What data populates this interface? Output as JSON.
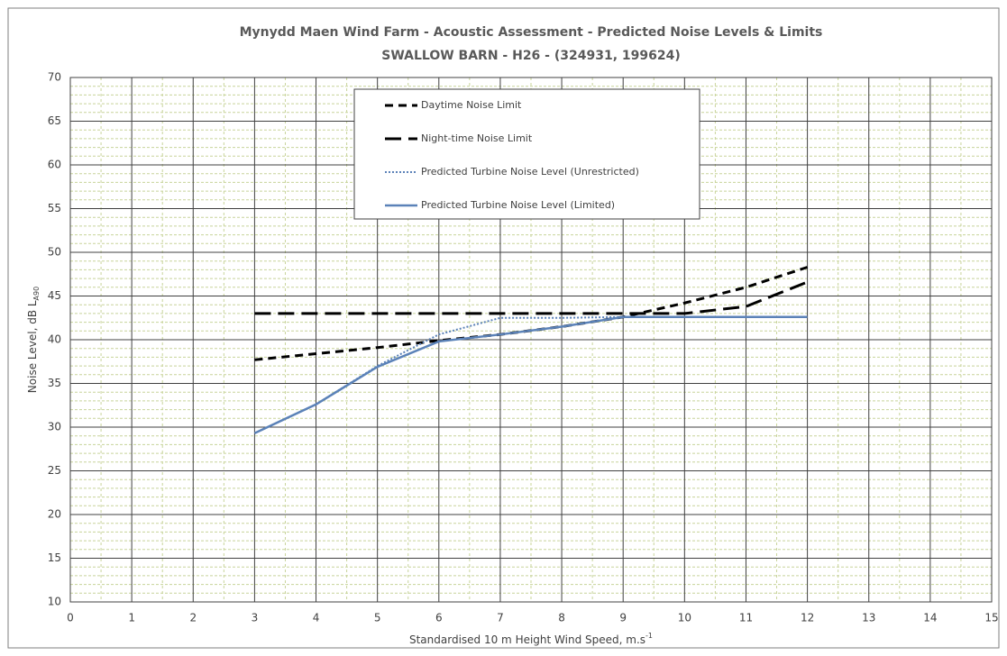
{
  "chart_data": {
    "type": "line",
    "title": "Mynydd Maen Wind Farm - Acoustic Assessment - Predicted Noise Levels & Limits",
    "subtitle": "SWALLOW BARN - H26 - (324931, 199624)",
    "xlabel": {
      "text": "Standardised 10 m Height Wind Speed, m.s",
      "sup": "-1"
    },
    "ylabel": {
      "text": "Noise Level, dB L",
      "sub": "A90"
    },
    "x": [
      3,
      4,
      5,
      6,
      7,
      8,
      9,
      10,
      11,
      12
    ],
    "series": [
      {
        "name": "Daytime Noise Limit",
        "color": "#000000",
        "dash": "dashed",
        "values": [
          37.7,
          38.4,
          39.1,
          39.9,
          40.6,
          41.5,
          42.6,
          44.2,
          46.0,
          48.3
        ]
      },
      {
        "name": "Night-time Noise Limit",
        "color": "#000000",
        "dash": "long-dashed",
        "values": [
          43,
          43,
          43,
          43,
          43,
          43,
          43,
          43,
          43.8,
          46.6
        ]
      },
      {
        "name": "Predicted Turbine Noise Level (Unrestricted)",
        "color": "#5b82b8",
        "dash": "dotted",
        "values": [
          29.3,
          32.6,
          37.0,
          40.6,
          42.5,
          42.5,
          42.6,
          42.6,
          42.6,
          42.6
        ]
      },
      {
        "name": "Predicted Turbine Noise Level (Limited)",
        "color": "#5b82b8",
        "dash": "solid",
        "values": [
          29.3,
          32.6,
          36.9,
          39.8,
          40.6,
          41.5,
          42.6,
          42.6,
          42.6,
          42.6
        ]
      }
    ],
    "xlim": [
      0,
      15
    ],
    "xticks": [
      0,
      1,
      2,
      3,
      4,
      5,
      6,
      7,
      8,
      9,
      10,
      11,
      12,
      13,
      14,
      15
    ],
    "ylim": [
      10,
      70
    ],
    "yticks": [
      10,
      15,
      20,
      25,
      30,
      35,
      40,
      45,
      50,
      55,
      60,
      65,
      70
    ],
    "grid": true,
    "minor_grid": true,
    "legend": "top-center"
  }
}
